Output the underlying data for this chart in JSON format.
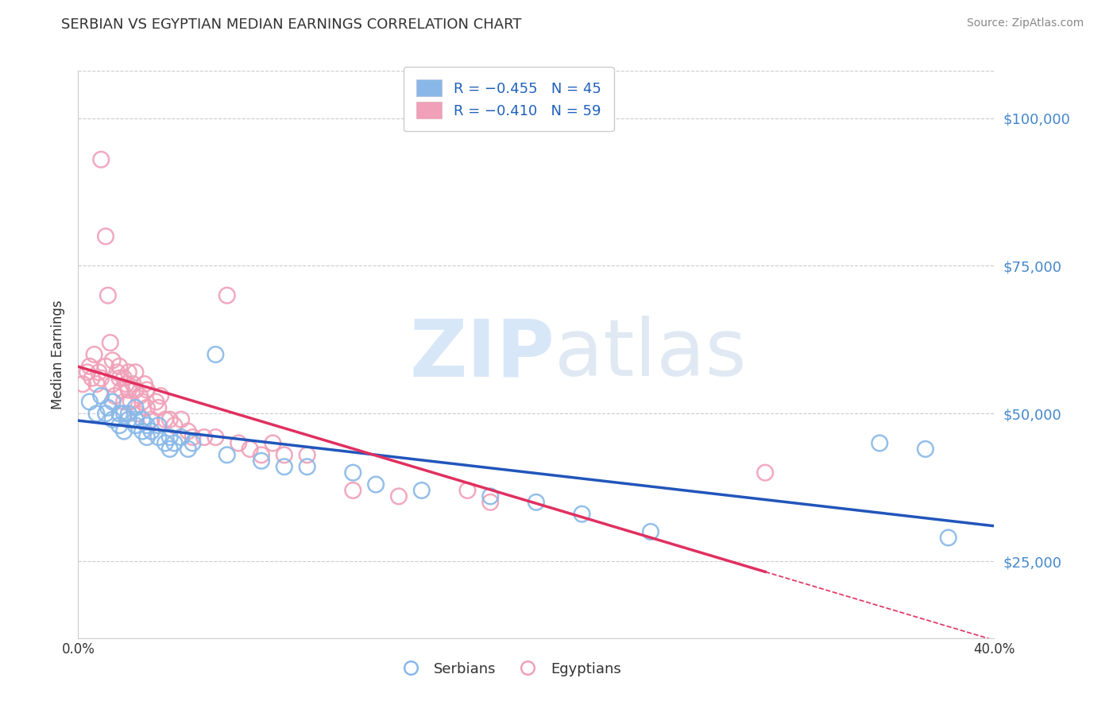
{
  "title": "SERBIAN VS EGYPTIAN MEDIAN EARNINGS CORRELATION CHART",
  "source": "Source: ZipAtlas.com",
  "ylabel": "Median Earnings",
  "xlim": [
    0.0,
    0.4
  ],
  "ylim": [
    12000,
    108000
  ],
  "yticks": [
    25000,
    50000,
    75000,
    100000
  ],
  "ytick_labels": [
    "$25,000",
    "$50,000",
    "$75,000",
    "$100,000"
  ],
  "xticks": [
    0.0,
    0.4
  ],
  "xtick_labels": [
    "0.0%",
    "40.0%"
  ],
  "serbian_color": "#89b8e8",
  "egyptian_color": "#f0a0b8",
  "serbian_line_color": "#2255bb",
  "egyptian_line_color": "#e03060",
  "R_serbian": -0.455,
  "N_serbian": 45,
  "R_egyptian": -0.41,
  "N_egyptian": 59,
  "background_color": "#ffffff",
  "grid_color": "#cccccc",
  "title_color": "#333333",
  "source_color": "#888888",
  "ylabel_color": "#333333",
  "tick_label_color_y": "#4488cc",
  "tick_label_color_x": "#333333",
  "legend_R_color": "#dd3355",
  "legend_N_color": "#2255bb",
  "serbian_points_x": [
    0.005,
    0.008,
    0.01,
    0.012,
    0.013,
    0.015,
    0.015,
    0.018,
    0.018,
    0.02,
    0.02,
    0.022,
    0.022,
    0.025,
    0.025,
    0.025,
    0.028,
    0.028,
    0.03,
    0.03,
    0.032,
    0.035,
    0.035,
    0.038,
    0.04,
    0.04,
    0.042,
    0.045,
    0.048,
    0.05,
    0.06,
    0.065,
    0.08,
    0.09,
    0.1,
    0.12,
    0.13,
    0.15,
    0.18,
    0.2,
    0.22,
    0.25,
    0.35,
    0.37,
    0.38
  ],
  "serbian_points_y": [
    52000,
    50000,
    53000,
    50000,
    51000,
    49000,
    52000,
    48000,
    50000,
    47000,
    50000,
    49000,
    50000,
    48000,
    49000,
    51000,
    47000,
    49000,
    46000,
    48000,
    47000,
    46000,
    48000,
    45000,
    44000,
    46000,
    45000,
    46000,
    44000,
    45000,
    60000,
    43000,
    42000,
    41000,
    41000,
    40000,
    38000,
    37000,
    36000,
    35000,
    33000,
    30000,
    45000,
    44000,
    29000
  ],
  "egyptian_points_x": [
    0.002,
    0.004,
    0.005,
    0.006,
    0.007,
    0.008,
    0.009,
    0.01,
    0.01,
    0.012,
    0.012,
    0.013,
    0.014,
    0.015,
    0.015,
    0.016,
    0.017,
    0.018,
    0.018,
    0.019,
    0.02,
    0.02,
    0.021,
    0.022,
    0.022,
    0.023,
    0.024,
    0.025,
    0.025,
    0.026,
    0.027,
    0.028,
    0.029,
    0.03,
    0.03,
    0.032,
    0.034,
    0.035,
    0.036,
    0.038,
    0.04,
    0.042,
    0.045,
    0.048,
    0.05,
    0.055,
    0.06,
    0.065,
    0.07,
    0.075,
    0.08,
    0.085,
    0.09,
    0.1,
    0.12,
    0.14,
    0.17,
    0.18,
    0.3
  ],
  "egyptian_points_y": [
    55000,
    57000,
    58000,
    56000,
    60000,
    55000,
    57000,
    93000,
    56000,
    80000,
    58000,
    70000,
    62000,
    55000,
    59000,
    53000,
    57000,
    56000,
    58000,
    54000,
    56000,
    52000,
    55000,
    54000,
    57000,
    52000,
    55000,
    54000,
    57000,
    50000,
    53000,
    52000,
    55000,
    51000,
    54000,
    49000,
    52000,
    51000,
    53000,
    49000,
    49000,
    48000,
    49000,
    47000,
    46000,
    46000,
    46000,
    70000,
    45000,
    44000,
    43000,
    45000,
    43000,
    43000,
    37000,
    36000,
    37000,
    35000,
    40000
  ]
}
